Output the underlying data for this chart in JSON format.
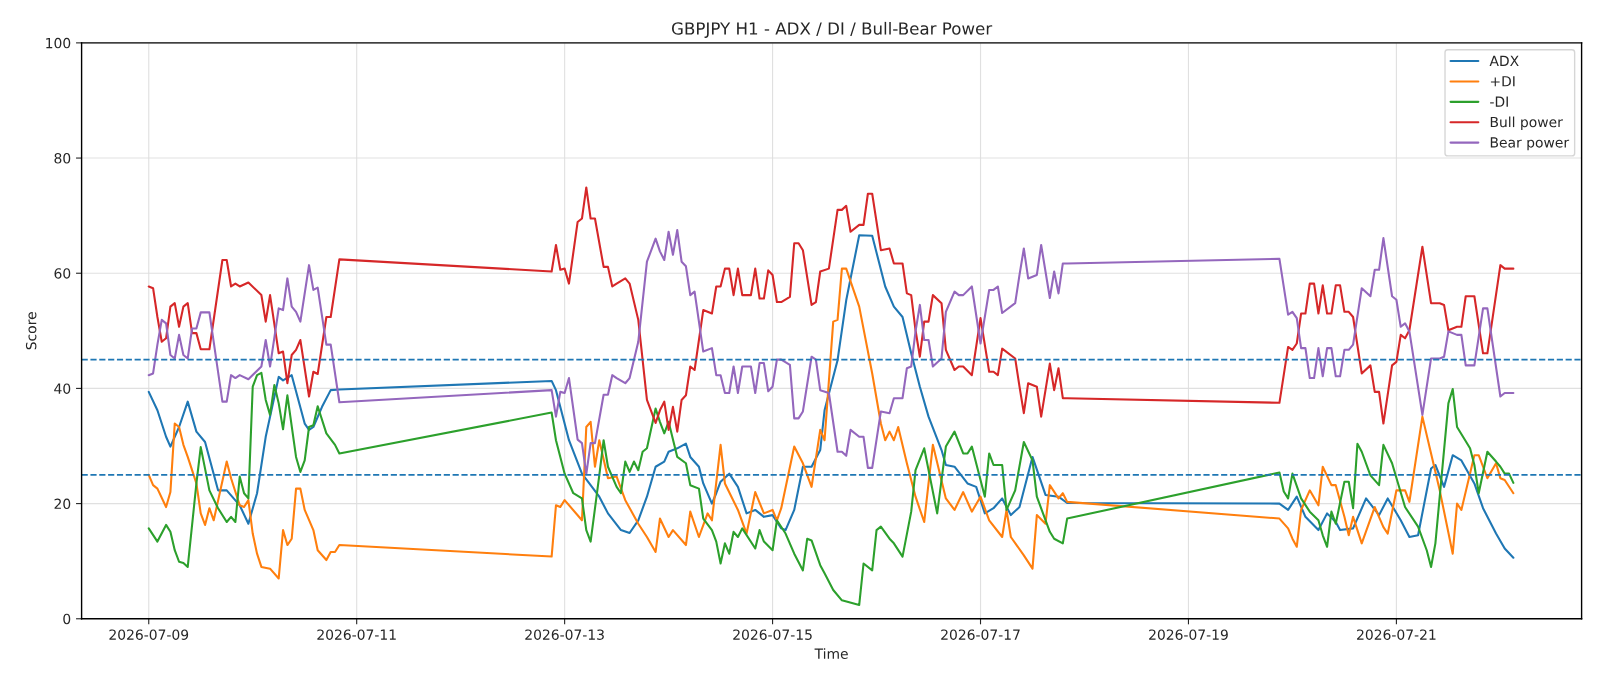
{
  "chart_data": {
    "type": "line",
    "title": "GBPJPY H1 - ADX / DI / Bull-Bear Power",
    "xlabel": "Time",
    "ylabel": "Score",
    "xlim": [
      "2026-07-08T08:30",
      "2026-07-22T18:45"
    ],
    "xticks": [
      "2026-07-09",
      "2026-07-11",
      "2026-07-13",
      "2026-07-15",
      "2026-07-17",
      "2026-07-19",
      "2026-07-21"
    ],
    "ylim": [
      0,
      100
    ],
    "yticks": [
      0,
      20,
      40,
      60,
      80,
      100
    ],
    "grid": true,
    "legend": "top right",
    "line_style": "solid",
    "ref_lines": [
      {
        "axis": "y",
        "value": 45,
        "color": "#1f77b4",
        "line_style": "dashed"
      },
      {
        "axis": "y",
        "value": 25,
        "color": "#1f77b4",
        "line_style": "dashed"
      }
    ],
    "x": [
      "2026-07-09T00:00",
      "2026-07-09T01:00",
      "2026-07-09T02:00",
      "2026-07-09T03:00",
      "2026-07-09T04:00",
      "2026-07-09T05:00",
      "2026-07-09T06:00",
      "2026-07-09T07:00",
      "2026-07-09T08:00",
      "2026-07-09T09:00",
      "2026-07-09T10:00",
      "2026-07-09T11:00",
      "2026-07-09T12:00",
      "2026-07-09T14:00",
      "2026-07-09T17:00",
      "2026-07-09T18:00",
      "2026-07-09T19:00",
      "2026-07-09T20:00",
      "2026-07-09T21:00",
      "2026-07-09T23:00",
      "2026-07-10T02:00",
      "2026-07-10T03:00",
      "2026-07-10T04:00",
      "2026-07-10T06:00",
      "2026-07-10T07:00",
      "2026-07-10T08:00",
      "2026-07-10T09:00",
      "2026-07-10T10:00",
      "2026-07-10T11:00",
      "2026-07-10T13:00",
      "2026-07-10T14:00",
      "2026-07-10T15:00",
      "2026-07-10T17:00",
      "2026-07-10T18:00",
      "2026-07-10T20:00",
      "2026-07-12T21:00",
      "2026-07-12T22:00",
      "2026-07-12T23:00",
      "2026-07-13T00:00",
      "2026-07-13T01:00",
      "2026-07-13T03:00",
      "2026-07-13T04:00",
      "2026-07-13T05:00",
      "2026-07-13T06:00",
      "2026-07-13T07:00",
      "2026-07-13T09:00",
      "2026-07-13T10:00",
      "2026-07-13T11:00",
      "2026-07-13T12:00",
      "2026-07-13T14:00",
      "2026-07-13T15:00",
      "2026-07-13T17:00",
      "2026-07-13T19:00",
      "2026-07-13T21:00",
      "2026-07-13T22:00",
      "2026-07-13T23:00",
      "2026-07-14T00:00",
      "2026-07-14T01:00",
      "2026-07-14T02:00",
      "2026-07-14T03:00",
      "2026-07-14T04:00",
      "2026-07-14T05:00",
      "2026-07-14T06:00",
      "2026-07-14T08:00",
      "2026-07-14T10:00",
      "2026-07-14T11:00",
      "2026-07-14T12:00",
      "2026-07-14T13:00",
      "2026-07-14T14:00",
      "2026-07-14T15:00",
      "2026-07-14T16:00",
      "2026-07-14T17:00",
      "2026-07-14T19:00",
      "2026-07-14T20:00",
      "2026-07-14T21:00",
      "2026-07-14T22:00",
      "2026-07-14T23:00",
      "2026-07-15T00:00",
      "2026-07-15T01:00",
      "2026-07-15T02:00",
      "2026-07-15T04:00",
      "2026-07-15T05:00",
      "2026-07-15T06:00",
      "2026-07-15T07:00",
      "2026-07-15T09:00",
      "2026-07-15T10:00",
      "2026-07-15T11:00",
      "2026-07-15T13:00",
      "2026-07-15T15:00",
      "2026-07-15T16:00",
      "2026-07-15T17:00",
      "2026-07-15T18:00",
      "2026-07-15T20:00",
      "2026-07-15T21:00",
      "2026-07-15T22:00",
      "2026-07-15T23:00",
      "2026-07-16T01:00",
      "2026-07-16T03:00",
      "2026-07-16T04:00",
      "2026-07-16T06:00",
      "2026-07-16T07:00",
      "2026-07-16T08:00",
      "2026-07-16T09:00",
      "2026-07-16T10:00",
      "2026-07-16T11:00",
      "2026-07-16T12:00",
      "2026-07-16T13:00",
      "2026-07-16T15:00",
      "2026-07-16T16:00",
      "2026-07-16T18:00",
      "2026-07-16T19:00",
      "2026-07-16T20:00",
      "2026-07-16T22:00",
      "2026-07-17T00:00",
      "2026-07-17T02:00",
      "2026-07-17T03:00",
      "2026-07-17T04:00",
      "2026-07-17T05:00",
      "2026-07-17T08:00",
      "2026-07-17T09:00",
      "2026-07-17T10:00",
      "2026-07-17T11:00",
      "2026-07-17T13:00",
      "2026-07-17T14:00",
      "2026-07-17T16:00",
      "2026-07-17T17:00",
      "2026-07-17T18:00",
      "2026-07-17T19:00",
      "2026-07-17T20:00",
      "2026-07-19T21:00",
      "2026-07-19T23:00",
      "2026-07-20T00:00",
      "2026-07-20T01:00",
      "2026-07-20T02:00",
      "2026-07-20T03:00",
      "2026-07-20T04:00",
      "2026-07-20T05:00",
      "2026-07-20T06:00",
      "2026-07-20T07:00",
      "2026-07-20T08:00",
      "2026-07-20T09:00",
      "2026-07-20T10:00",
      "2026-07-20T11:00",
      "2026-07-20T12:00",
      "2026-07-20T13:00",
      "2026-07-20T14:00",
      "2026-07-20T16:00",
      "2026-07-20T18:00",
      "2026-07-20T19:00",
      "2026-07-20T20:00",
      "2026-07-20T21:00",
      "2026-07-20T23:00",
      "2026-07-21T00:00",
      "2026-07-21T01:00",
      "2026-07-21T02:00",
      "2026-07-21T03:00",
      "2026-07-21T06:00",
      "2026-07-21T08:00",
      "2026-07-21T10:00",
      "2026-07-21T11:00",
      "2026-07-21T12:00",
      "2026-07-21T14:00",
      "2026-07-21T15:00",
      "2026-07-21T16:00",
      "2026-07-21T18:00",
      "2026-07-21T20:00",
      "2026-07-21T21:00",
      "2026-07-22T00:00",
      "2026-07-22T01:00",
      "2026-07-22T03:00"
    ],
    "series": [
      {
        "name": "ADX",
        "color": "#1f77b4",
        "x": [
          "2026-07-09T00:00",
          "2026-07-09T02:00",
          "2026-07-09T04:00",
          "2026-07-09T05:00",
          "2026-07-09T07:00",
          "2026-07-09T09:00",
          "2026-07-09T11:00",
          "2026-07-09T13:00",
          "2026-07-09T16:00",
          "2026-07-09T18:00",
          "2026-07-09T21:00",
          "2026-07-09T23:00",
          "2026-07-10T01:00",
          "2026-07-10T03:00",
          "2026-07-10T06:00",
          "2026-07-10T07:00",
          "2026-07-10T09:00",
          "2026-07-10T12:00",
          "2026-07-10T13:00",
          "2026-07-10T14:00",
          "2026-07-10T16:00",
          "2026-07-10T18:00",
          "2026-07-10T20:00",
          "2026-07-12T21:00",
          "2026-07-12T22:00",
          "2026-07-13T01:00",
          "2026-07-13T04:00",
          "2026-07-13T08:00",
          "2026-07-13T10:00",
          "2026-07-13T13:00",
          "2026-07-13T15:00",
          "2026-07-13T17:00",
          "2026-07-13T19:00",
          "2026-07-13T21:00",
          "2026-07-13T23:00",
          "2026-07-14T00:00",
          "2026-07-14T02:00",
          "2026-07-14T04:00",
          "2026-07-14T05:00",
          "2026-07-14T07:00",
          "2026-07-14T08:00",
          "2026-07-14T10:00",
          "2026-07-14T11:00",
          "2026-07-14T12:00",
          "2026-07-14T14:00",
          "2026-07-14T16:00",
          "2026-07-14T18:00",
          "2026-07-14T20:00",
          "2026-07-14T22:00",
          "2026-07-15T00:00",
          "2026-07-15T02:00",
          "2026-07-15T03:00",
          "2026-07-15T05:00",
          "2026-07-15T07:00",
          "2026-07-15T09:00",
          "2026-07-15T11:00",
          "2026-07-15T12:00",
          "2026-07-15T15:00",
          "2026-07-15T17:00",
          "2026-07-15T20:00",
          "2026-07-15T23:00",
          "2026-07-16T02:00",
          "2026-07-16T04:00",
          "2026-07-16T06:00",
          "2026-07-16T08:00",
          "2026-07-16T10:00",
          "2026-07-16T12:00",
          "2026-07-16T15:00",
          "2026-07-16T16:00",
          "2026-07-16T18:00",
          "2026-07-16T21:00",
          "2026-07-16T23:00",
          "2026-07-17T01:00",
          "2026-07-17T03:00",
          "2026-07-17T05:00",
          "2026-07-17T07:00",
          "2026-07-17T09:00",
          "2026-07-17T12:00",
          "2026-07-17T15:00",
          "2026-07-17T18:00",
          "2026-07-17T20:00",
          "2026-07-19T21:00",
          "2026-07-19T23:00",
          "2026-07-20T01:00",
          "2026-07-20T03:00",
          "2026-07-20T06:00",
          "2026-07-20T08:00",
          "2026-07-20T10:00",
          "2026-07-20T11:00",
          "2026-07-20T14:00",
          "2026-07-20T17:00",
          "2026-07-20T20:00",
          "2026-07-20T22:00",
          "2026-07-21T01:00",
          "2026-07-21T03:00",
          "2026-07-21T05:00",
          "2026-07-21T08:00",
          "2026-07-21T09:00",
          "2026-07-21T11:00",
          "2026-07-21T13:00",
          "2026-07-21T15:00",
          "2026-07-21T18:00",
          "2026-07-21T20:00",
          "2026-07-21T23:00",
          "2026-07-22T01:00",
          "2026-07-22T03:00"
        ],
        "values": [
          39.4,
          36.2,
          31.6,
          29.9,
          33.3,
          37.7,
          32.5,
          30.7,
          22.3,
          22.3,
          19.7,
          16.5,
          21.8,
          31.6,
          42,
          41.4,
          42.3,
          33.9,
          32.8,
          33.3,
          36.8,
          39.7,
          39.8,
          41.3,
          39.7,
          31,
          25.2,
          21.2,
          18.3,
          15.4,
          14.9,
          17.1,
          21.2,
          26.4,
          27.3,
          29,
          29.6,
          30.4,
          28.1,
          26.4,
          23.5,
          20,
          21.8,
          23.8,
          25.2,
          22.9,
          18.3,
          18.9,
          17.7,
          18,
          15.7,
          15.4,
          18.9,
          26.4,
          26.4,
          29.3,
          36.2,
          44.9,
          55.3,
          66.6,
          66.5,
          57.7,
          54.2,
          52.4,
          46.1,
          40.3,
          35.1,
          29.3,
          26.7,
          26.4,
          23.5,
          22.9,
          18.3,
          19.2,
          20.9,
          18,
          19.4,
          28.1,
          21.5,
          21.2,
          20.1,
          20,
          18.9,
          21.2,
          17.7,
          15.4,
          18.3,
          16.8,
          15.4,
          15.7,
          20.9,
          18,
          20.9,
          17.1,
          14.2,
          14.5,
          26.1,
          26.7,
          22.9,
          28.4,
          27.5,
          23.5,
          19.2,
          14.8,
          12.2,
          10.6
        ]
      },
      {
        "name": "+DI",
        "color": "#ff7f0e",
        "x": [
          "2026-07-09T00:00",
          "2026-07-09T01:00",
          "2026-07-09T02:00",
          "2026-07-09T04:00",
          "2026-07-09T05:00",
          "2026-07-09T06:00",
          "2026-07-09T07:00",
          "2026-07-09T08:00",
          "2026-07-09T09:00",
          "2026-07-09T11:00",
          "2026-07-09T12:00",
          "2026-07-09T13:00",
          "2026-07-09T14:00",
          "2026-07-09T15:00",
          "2026-07-09T18:00",
          "2026-07-09T19:00",
          "2026-07-09T21:00",
          "2026-07-09T22:00",
          "2026-07-09T23:00",
          "2026-07-10T00:00",
          "2026-07-10T01:00",
          "2026-07-10T02:00",
          "2026-07-10T04:00",
          "2026-07-10T06:00",
          "2026-07-10T07:00",
          "2026-07-10T08:00",
          "2026-07-10T09:00",
          "2026-07-10T10:00",
          "2026-07-10T11:00",
          "2026-07-10T12:00",
          "2026-07-10T14:00",
          "2026-07-10T15:00",
          "2026-07-10T17:00",
          "2026-07-10T18:00",
          "2026-07-10T19:00",
          "2026-07-10T20:00",
          "2026-07-12T21:00",
          "2026-07-12T22:00",
          "2026-07-12T23:00",
          "2026-07-13T00:00",
          "2026-07-13T04:00",
          "2026-07-13T05:00",
          "2026-07-13T06:00",
          "2026-07-13T07:00",
          "2026-07-13T08:00",
          "2026-07-13T10:00",
          "2026-07-13T12:00",
          "2026-07-13T14:00",
          "2026-07-13T17:00",
          "2026-07-13T19:00",
          "2026-07-13T21:00",
          "2026-07-13T22:00",
          "2026-07-14T00:00",
          "2026-07-14T01:00",
          "2026-07-14T04:00",
          "2026-07-14T05:00",
          "2026-07-14T07:00",
          "2026-07-14T09:00",
          "2026-07-14T10:00",
          "2026-07-14T12:00",
          "2026-07-14T13:00",
          "2026-07-14T16:00",
          "2026-07-14T18:00",
          "2026-07-14T20:00",
          "2026-07-14T22:00",
          "2026-07-15T00:00",
          "2026-07-15T01:00",
          "2026-07-15T02:00",
          "2026-07-15T05:00",
          "2026-07-15T07:00",
          "2026-07-15T09:00",
          "2026-07-15T11:00",
          "2026-07-15T12:00",
          "2026-07-15T14:00",
          "2026-07-15T15:00",
          "2026-07-15T16:00",
          "2026-07-15T17:00",
          "2026-07-15T20:00",
          "2026-07-15T23:00",
          "2026-07-16T01:00",
          "2026-07-16T02:00",
          "2026-07-16T03:00",
          "2026-07-16T04:00",
          "2026-07-16T05:00",
          "2026-07-16T07:00",
          "2026-07-16T09:00",
          "2026-07-16T11:00",
          "2026-07-16T13:00",
          "2026-07-16T16:00",
          "2026-07-16T18:00",
          "2026-07-16T20:00",
          "2026-07-16T22:00",
          "2026-07-17T00:00",
          "2026-07-17T02:00",
          "2026-07-17T05:00",
          "2026-07-17T06:00",
          "2026-07-17T07:00",
          "2026-07-17T10:00",
          "2026-07-17T12:00",
          "2026-07-17T13:00",
          "2026-07-17T15:00",
          "2026-07-17T16:00",
          "2026-07-17T18:00",
          "2026-07-17T19:00",
          "2026-07-17T20:00",
          "2026-07-19T21:00",
          "2026-07-19T23:00",
          "2026-07-20T00:00",
          "2026-07-20T01:00",
          "2026-07-20T02:00",
          "2026-07-20T04:00",
          "2026-07-20T06:00",
          "2026-07-20T07:00",
          "2026-07-20T09:00",
          "2026-07-20T10:00",
          "2026-07-20T12:00",
          "2026-07-20T13:00",
          "2026-07-20T14:00",
          "2026-07-20T16:00",
          "2026-07-20T19:00",
          "2026-07-20T21:00",
          "2026-07-20T22:00",
          "2026-07-21T00:00",
          "2026-07-21T02:00",
          "2026-07-21T03:00",
          "2026-07-21T06:00",
          "2026-07-21T08:00",
          "2026-07-21T10:00",
          "2026-07-21T13:00",
          "2026-07-21T14:00",
          "2026-07-21T15:00",
          "2026-07-21T18:00",
          "2026-07-21T19:00",
          "2026-07-21T21:00",
          "2026-07-21T23:00",
          "2026-07-22T00:00",
          "2026-07-22T01:00",
          "2026-07-22T03:00"
        ],
        "values": [
          25,
          23.2,
          22.6,
          19.4,
          22,
          33.9,
          33.3,
          30.2,
          28.1,
          23.5,
          18.3,
          16.3,
          19.2,
          17.1,
          27.3,
          24.4,
          19.7,
          19.4,
          20.6,
          14.8,
          11.3,
          9,
          8.7,
          7,
          15.4,
          12.8,
          13.9,
          22.6,
          22.6,
          18.9,
          15.4,
          11.9,
          10.2,
          11.6,
          11.6,
          12.8,
          10.8,
          19.7,
          19.4,
          20.6,
          17.1,
          33.3,
          34.2,
          26.4,
          31,
          24.4,
          24.7,
          20.6,
          16.5,
          14.2,
          11.6,
          17.4,
          14.2,
          15.4,
          12.8,
          18.6,
          14.2,
          18.3,
          17.1,
          30.2,
          23.5,
          18.9,
          14.8,
          22,
          18.3,
          18.9,
          17.1,
          19.2,
          29.9,
          27,
          22.9,
          32.8,
          31,
          51.6,
          51.9,
          60.8,
          60.8,
          54.2,
          42.6,
          33.9,
          31,
          32.5,
          31,
          33.3,
          27,
          21.2,
          16.8,
          30.2,
          20.9,
          18.9,
          22,
          18.6,
          21.2,
          17.1,
          14.2,
          18.9,
          14.2,
          11,
          8.7,
          18,
          16.5,
          23.2,
          20.9,
          21.8,
          20.3,
          17.4,
          15.7,
          13.9,
          12.5,
          18.9,
          22.3,
          19.7,
          26.4,
          23.2,
          23.2,
          17.7,
          14.5,
          17.7,
          13.1,
          19.4,
          15.9,
          14.8,
          22.3,
          22.3,
          20.3,
          35.1,
          28.7,
          22.3,
          11.3,
          20,
          18.9,
          28.4,
          28.4,
          24.4,
          27,
          24.4,
          24.1,
          21.8
        ]
      },
      {
        "name": "-DI",
        "color": "#2ca02c",
        "x": [
          "2026-07-09T00:00",
          "2026-07-09T02:00",
          "2026-07-09T04:00",
          "2026-07-09T05:00",
          "2026-07-09T06:00",
          "2026-07-09T07:00",
          "2026-07-09T08:00",
          "2026-07-09T09:00",
          "2026-07-09T11:00",
          "2026-07-09T12:00",
          "2026-07-09T14:00",
          "2026-07-09T16:00",
          "2026-07-09T18:00",
          "2026-07-09T19:00",
          "2026-07-09T20:00",
          "2026-07-09T21:00",
          "2026-07-09T22:00",
          "2026-07-09T23:00",
          "2026-07-10T00:00",
          "2026-07-10T01:00",
          "2026-07-10T02:00",
          "2026-07-10T03:00",
          "2026-07-10T04:00",
          "2026-07-10T05:00",
          "2026-07-10T06:00",
          "2026-07-10T07:00",
          "2026-07-10T08:00",
          "2026-07-10T10:00",
          "2026-07-10T11:00",
          "2026-07-10T12:00",
          "2026-07-10T13:00",
          "2026-07-10T14:00",
          "2026-07-10T15:00",
          "2026-07-10T17:00",
          "2026-07-10T19:00",
          "2026-07-10T20:00",
          "2026-07-12T21:00",
          "2026-07-12T22:00",
          "2026-07-13T00:00",
          "2026-07-13T02:00",
          "2026-07-13T04:00",
          "2026-07-13T05:00",
          "2026-07-13T06:00",
          "2026-07-13T08:00",
          "2026-07-13T09:00",
          "2026-07-13T10:00",
          "2026-07-13T12:00",
          "2026-07-13T13:00",
          "2026-07-13T14:00",
          "2026-07-13T15:00",
          "2026-07-13T16:00",
          "2026-07-13T17:00",
          "2026-07-13T18:00",
          "2026-07-13T19:00",
          "2026-07-13T21:00",
          "2026-07-13T22:00",
          "2026-07-13T23:00",
          "2026-07-14T00:00",
          "2026-07-14T02:00",
          "2026-07-14T04:00",
          "2026-07-14T05:00",
          "2026-07-14T07:00",
          "2026-07-14T08:00",
          "2026-07-14T10:00",
          "2026-07-14T11:00",
          "2026-07-14T12:00",
          "2026-07-14T13:00",
          "2026-07-14T14:00",
          "2026-07-14T15:00",
          "2026-07-14T16:00",
          "2026-07-14T17:00",
          "2026-07-14T20:00",
          "2026-07-14T21:00",
          "2026-07-14T22:00",
          "2026-07-15T00:00",
          "2026-07-15T01:00",
          "2026-07-15T03:00",
          "2026-07-15T05:00",
          "2026-07-15T07:00",
          "2026-07-15T08:00",
          "2026-07-15T09:00",
          "2026-07-15T11:00",
          "2026-07-15T12:00",
          "2026-07-15T14:00",
          "2026-07-15T16:00",
          "2026-07-15T20:00",
          "2026-07-15T21:00",
          "2026-07-15T23:00",
          "2026-07-16T00:00",
          "2026-07-16T01:00",
          "2026-07-16T03:00",
          "2026-07-16T04:00",
          "2026-07-16T06:00",
          "2026-07-16T08:00",
          "2026-07-16T09:00",
          "2026-07-16T11:00",
          "2026-07-16T14:00",
          "2026-07-16T16:00",
          "2026-07-16T18:00",
          "2026-07-16T20:00",
          "2026-07-16T21:00",
          "2026-07-16T22:00",
          "2026-07-17T01:00",
          "2026-07-17T02:00",
          "2026-07-17T03:00",
          "2026-07-17T05:00",
          "2026-07-17T06:00",
          "2026-07-17T08:00",
          "2026-07-17T10:00",
          "2026-07-17T12:00",
          "2026-07-17T13:00",
          "2026-07-17T16:00",
          "2026-07-17T17:00",
          "2026-07-17T19:00",
          "2026-07-17T20:00",
          "2026-07-19T21:00",
          "2026-07-19T22:00",
          "2026-07-19T23:00",
          "2026-07-20T00:00",
          "2026-07-20T02:00",
          "2026-07-20T04:00",
          "2026-07-20T06:00",
          "2026-07-20T07:00",
          "2026-07-20T08:00",
          "2026-07-20T09:00",
          "2026-07-20T10:00",
          "2026-07-20T12:00",
          "2026-07-20T13:00",
          "2026-07-20T14:00",
          "2026-07-20T15:00",
          "2026-07-20T16:00",
          "2026-07-20T18:00",
          "2026-07-20T20:00",
          "2026-07-20T21:00",
          "2026-07-20T23:00",
          "2026-07-21T02:00",
          "2026-07-21T05:00",
          "2026-07-21T07:00",
          "2026-07-21T08:00",
          "2026-07-21T09:00",
          "2026-07-21T12:00",
          "2026-07-21T13:00",
          "2026-07-21T14:00",
          "2026-07-21T17:00",
          "2026-07-21T18:00",
          "2026-07-21T19:00",
          "2026-07-21T21:00",
          "2026-07-21T23:00",
          "2026-07-22T00:00",
          "2026-07-22T01:00",
          "2026-07-22T02:00",
          "2026-07-22T03:00"
        ],
        "values": [
          15.7,
          13.4,
          16.3,
          15.1,
          11.9,
          9.9,
          9.7,
          9,
          23.5,
          29.8,
          22.3,
          19.2,
          16.8,
          17.7,
          16.8,
          24.7,
          21.8,
          20.9,
          40.3,
          42.3,
          42.7,
          38,
          35.4,
          40.6,
          37.4,
          32.9,
          38.8,
          28.1,
          25.5,
          27.5,
          33.3,
          33.6,
          36.9,
          32.2,
          30.2,
          28.7,
          35.8,
          31,
          25.2,
          21.8,
          20.9,
          15.4,
          13.4,
          24.9,
          31,
          26.4,
          22.9,
          21.8,
          27.3,
          25.5,
          27.3,
          25.8,
          29,
          29.6,
          36.5,
          34.2,
          32.2,
          34.2,
          28.1,
          27,
          23.2,
          22.6,
          17.4,
          15.4,
          13.4,
          9.6,
          13.1,
          11.3,
          15.1,
          14.2,
          15.7,
          12.2,
          15.4,
          13.4,
          11.9,
          17.1,
          14.8,
          11.3,
          8.4,
          13.9,
          13.6,
          9.3,
          7.9,
          5,
          3.2,
          2.4,
          9.6,
          8.4,
          15.4,
          16,
          13.9,
          13.1,
          10.8,
          18.6,
          25.8,
          29.6,
          18.3,
          29.9,
          32.5,
          28.7,
          28.7,
          29.9,
          21.2,
          28.7,
          26.7,
          26.7,
          18.9,
          22.3,
          30.7,
          27.5,
          21.2,
          15.1,
          13.9,
          13.1,
          17.4,
          25.4,
          22.1,
          20.9,
          25.2,
          20.9,
          18.6,
          17.1,
          14.5,
          12.5,
          18.6,
          16.5,
          23.8,
          23.8,
          19.2,
          30.4,
          29,
          24.9,
          23.2,
          30.2,
          27,
          19.4,
          16,
          11.9,
          9,
          13.1,
          37.4,
          39.9,
          33.3,
          29.6,
          26.7,
          21.8,
          29,
          27.3,
          26.4,
          25.2,
          25.2,
          23.6
        ]
      },
      {
        "name": "Bull power",
        "color": "#d62728",
        "values": [
          57.7,
          57.4,
          52.4,
          48.1,
          48.7,
          54.2,
          54.8,
          50.7,
          54.2,
          54.8,
          49.6,
          49.6,
          46.8,
          46.8,
          62.3,
          62.3,
          57.7,
          58.2,
          57.7,
          58.4,
          56.2,
          51.6,
          56.2,
          46.1,
          46.4,
          40.9,
          45.8,
          46.7,
          48.4,
          38.6,
          42.9,
          42.5,
          52.4,
          52.4,
          62.4,
          60.3,
          64.9,
          60.6,
          60.8,
          58.2,
          68.9,
          69.5,
          74.9,
          69.5,
          69.5,
          61.1,
          61.1,
          57.7,
          58.2,
          59.1,
          58.2,
          51.9,
          38,
          34,
          36.2,
          37.7,
          32.8,
          36.8,
          32.5,
          38,
          38.8,
          43.8,
          43.2,
          53.6,
          53,
          57.7,
          57.7,
          60.8,
          60.8,
          56.2,
          60.8,
          56.2,
          56.2,
          60.8,
          55.6,
          55.6,
          60.5,
          59.7,
          55,
          55,
          55.9,
          65.2,
          65.2,
          64,
          54.5,
          55,
          60.3,
          60.8,
          71,
          71,
          71.7,
          67.2,
          68.4,
          68.4,
          73.8,
          73.8,
          64,
          64.3,
          61.7,
          61.7,
          56.5,
          56.2,
          50.1,
          45.5,
          51.6,
          51.6,
          56.2,
          54.8,
          46.7,
          43.2,
          43.8,
          43.8,
          42.3,
          52.2,
          42.9,
          42.9,
          42.3,
          46.9,
          45.2,
          40.3,
          35.7,
          40.9,
          40.3,
          35.1,
          44.3,
          39.7,
          43.5,
          38.3,
          38.3,
          37.5,
          47.2,
          46.7,
          47.8,
          53,
          53,
          58.2,
          58.2,
          53,
          57.9,
          53,
          53,
          57.9,
          57.9,
          53.3,
          53.3,
          52.4,
          42.6,
          44,
          39.4,
          39.4,
          33.9,
          44,
          44.6,
          49.3,
          48.7,
          50.1,
          64.6,
          54.8,
          54.8,
          54.5,
          50.1,
          50.7,
          50.7,
          56,
          56,
          46.1,
          46.1,
          61.4,
          60.8,
          60.8
        ]
      },
      {
        "name": "Bear power",
        "color": "#9467bd",
        "values": [
          42.3,
          42.6,
          47.6,
          51.9,
          51.3,
          45.8,
          45.2,
          49.3,
          45.8,
          45.2,
          50.4,
          50.4,
          53.2,
          53.2,
          37.7,
          37.7,
          42.3,
          41.8,
          42.3,
          41.6,
          43.8,
          48.4,
          43.8,
          53.9,
          53.6,
          59.1,
          54.2,
          53.3,
          51.6,
          61.4,
          57.1,
          57.5,
          47.6,
          47.6,
          37.6,
          39.7,
          35.1,
          39.4,
          39.2,
          41.8,
          31.1,
          30.5,
          25.1,
          30.5,
          30.5,
          38.9,
          38.9,
          42.3,
          41.8,
          40.9,
          41.8,
          48.1,
          62,
          66,
          63.8,
          62.3,
          67.2,
          63.2,
          67.5,
          62,
          61.2,
          56.2,
          56.8,
          46.4,
          47,
          42.3,
          42.3,
          39.2,
          39.2,
          43.8,
          39.2,
          43.8,
          43.8,
          39.2,
          44.4,
          44.4,
          39.5,
          40.3,
          45,
          45,
          44.1,
          34.8,
          34.8,
          36,
          45.5,
          45,
          39.7,
          39.2,
          29,
          29,
          28.3,
          32.8,
          31.6,
          31.6,
          26.2,
          26.2,
          36,
          35.7,
          38.3,
          38.3,
          43.5,
          43.8,
          49.9,
          54.5,
          48.4,
          48.4,
          43.8,
          45.2,
          53.3,
          56.8,
          56.2,
          56.2,
          57.7,
          47.8,
          57.1,
          57.1,
          57.7,
          53.1,
          54.8,
          59.7,
          64.3,
          59.1,
          59.7,
          64.9,
          55.7,
          60.3,
          56.5,
          61.7,
          61.7,
          62.5,
          52.8,
          53.3,
          52.2,
          47,
          47,
          41.8,
          41.8,
          47,
          42.1,
          47,
          47,
          42.1,
          42.1,
          46.7,
          46.7,
          47.6,
          57.4,
          56,
          60.6,
          60.6,
          66.1,
          56,
          55.4,
          50.7,
          51.3,
          49.9,
          35.4,
          45.2,
          45.2,
          45.5,
          49.9,
          49.3,
          49.3,
          44,
          44,
          53.9,
          53.9,
          38.6,
          39.2,
          39.2
        ]
      }
    ]
  }
}
